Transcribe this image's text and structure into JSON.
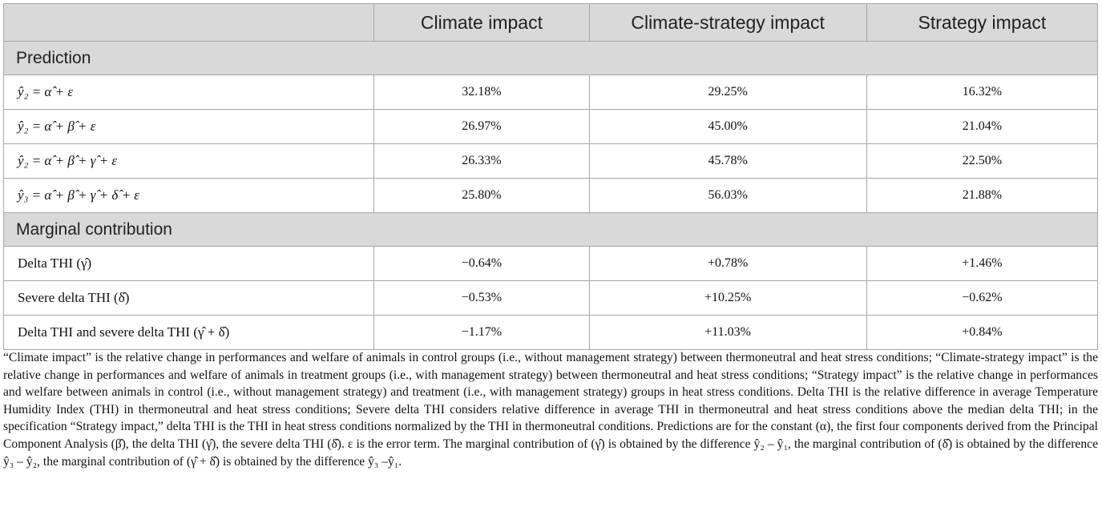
{
  "header": {
    "col0": "",
    "col1": "Climate impact",
    "col2": "Climate-strategy impact",
    "col3": "Strategy impact"
  },
  "sections": {
    "prediction": "Prediction",
    "marginal": "Marginal contribution"
  },
  "prediction_rows": [
    {
      "label": "ŷ₂ = α̂ + ε",
      "values": [
        "32.18%",
        "29.25%",
        "16.32%"
      ]
    },
    {
      "label": "ŷ₂ = α̂ + β̂ + ε",
      "values": [
        "26.97%",
        "45.00%",
        "21.04%"
      ]
    },
    {
      "label": "ŷ₂ = α̂ + β̂ + γ̂ + ε",
      "values": [
        "26.33%",
        "45.78%",
        "22.50%"
      ]
    },
    {
      "label": "ŷ₃ = α̂ + β̂ + γ̂ + δ̂ + ε",
      "values": [
        "25.80%",
        "56.03%",
        "21.88%"
      ]
    }
  ],
  "marginal_rows": [
    {
      "label": "Delta THI (γ̂)",
      "values": [
        "−0.64%",
        "+0.78%",
        "+1.46%"
      ]
    },
    {
      "label": "Severe delta THI (δ̂)",
      "values": [
        "−0.53%",
        "+10.25%",
        "−0.62%"
      ]
    },
    {
      "label": "Delta THI and severe delta THI (γ̂ + δ̂)",
      "values": [
        "−1.17%",
        "+11.03%",
        "+0.84%"
      ]
    }
  ],
  "footnote": "“Climate impact” is the relative change in performances and welfare of animals in control groups (i.e., without management strategy) between thermoneutral and heat stress conditions; “Climate-strategy impact” is the relative change in performances and welfare of animals in treatment groups (i.e., with management strategy) between thermoneutral and heat stress conditions; “Strategy impact” is the relative change in performances and welfare between animals in control (i.e., without management strategy) and treatment (i.e., with management strategy) groups in heat stress conditions. Delta THI is the relative difference in average Temperature Humidity Index (THI) in thermoneutral and heat stress conditions; Severe delta THI considers relative difference in average THI in thermoneutral and heat stress conditions above the median delta THI; in the specification “Strategy impact,” delta THI is the THI in heat stress conditions normalized by the THI in thermoneutral conditions. Predictions are for the constant (α), the first four components derived from the Principal Component Analysis (β̂), the delta THI (γ̂), the severe delta THI (δ̂). ε is the error term. The marginal contribution of (γ̂) is obtained by the difference ŷ₂ – ŷ₁, the marginal contribution of (δ̂) is obtained by the difference ŷ₃ – ŷ₂, the marginal contribution of (γ̂ + δ̂) is obtained by the difference ŷ₃ –ŷ₁."
}
